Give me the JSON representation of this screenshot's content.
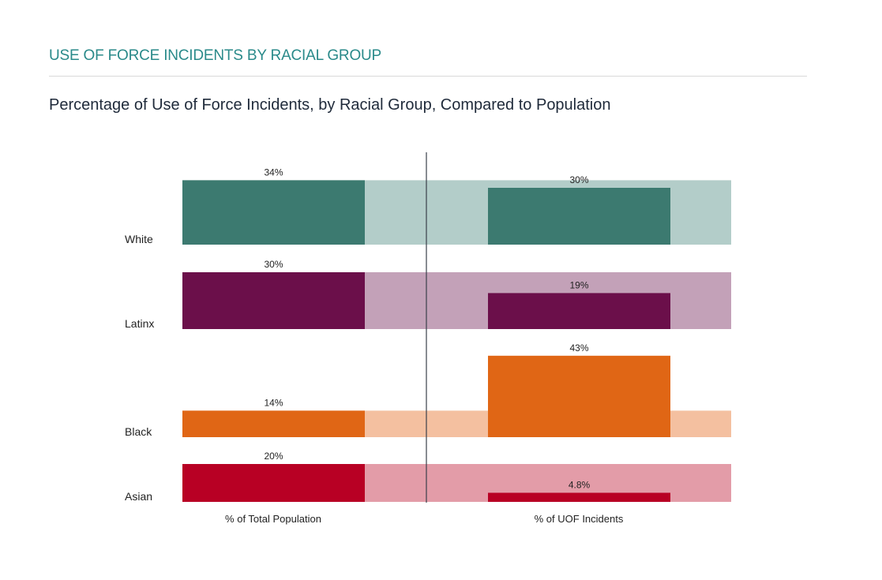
{
  "header": {
    "title": "USE OF FORCE INCIDENTS BY RACIAL GROUP",
    "subtitle": "Percentage of Use of Force Incidents, by Racial Group, Compared to Population"
  },
  "chart_data": {
    "type": "bar",
    "title": "Percentage of Use of Force Incidents, by Racial Group, Compared to Population",
    "panels": [
      "% of Total Population",
      "% of UOF Incidents"
    ],
    "categories": [
      "White",
      "Latinx",
      "Black",
      "Asian"
    ],
    "series": [
      {
        "name": "% of Total Population",
        "values": [
          34,
          30,
          14,
          20
        ],
        "labels": [
          "34%",
          "30%",
          "14%",
          "20%"
        ]
      },
      {
        "name": "% of UOF Incidents",
        "values": [
          30,
          19,
          43,
          4.8
        ],
        "labels": [
          "30%",
          "19%",
          "43%",
          "4.8%"
        ]
      }
    ],
    "colors": {
      "White": {
        "dark": "#3c7a70",
        "light": "#b3cdc9"
      },
      "Latinx": {
        "dark": "#6b0f4a",
        "light": "#c3a1b8"
      },
      "Black": {
        "dark": "#e06615",
        "light": "#f4c0a0"
      },
      "Asian": {
        "dark": "#b80024",
        "light": "#e39ca8"
      }
    },
    "divider_color": "#3a3f4a"
  }
}
